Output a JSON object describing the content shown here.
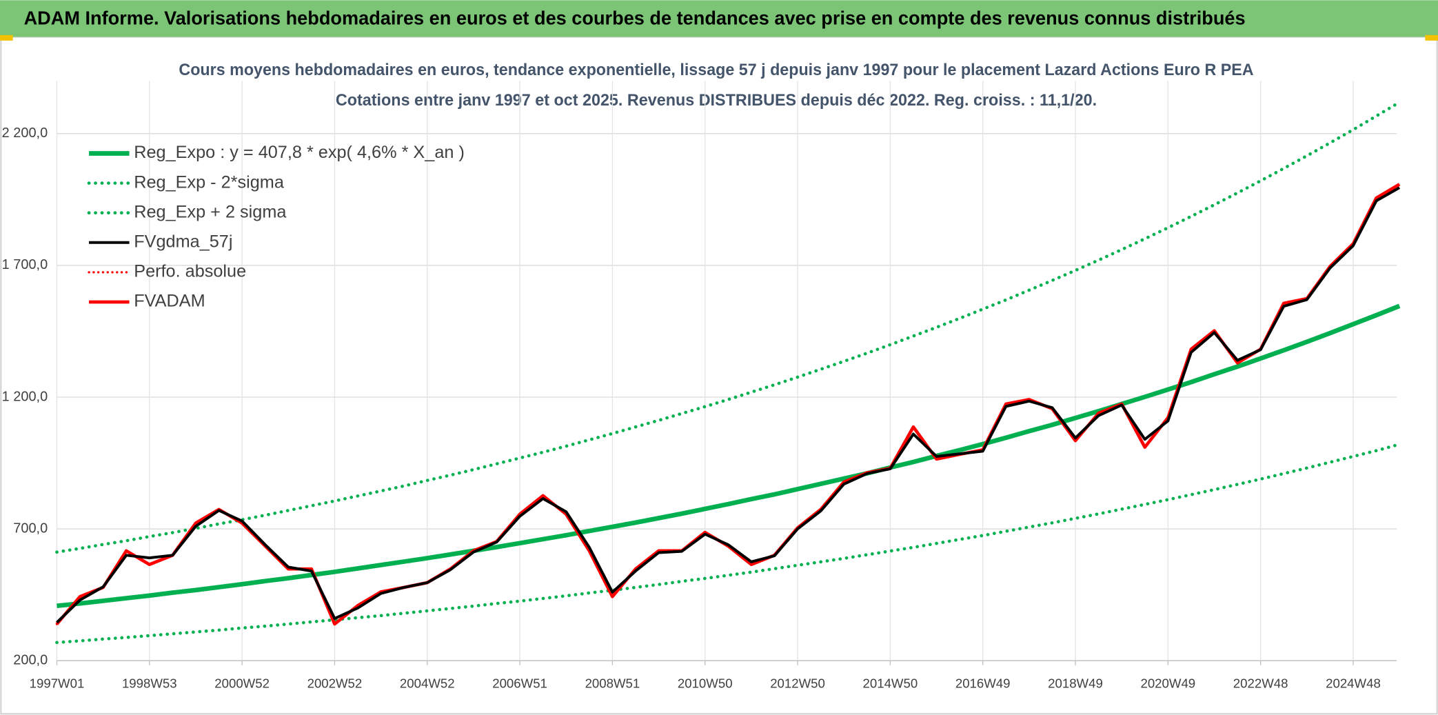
{
  "header": {
    "title": "ADAM Informe. Valorisations hebdomadaires en euros et des courbes de tendances avec prise en compte des revenus connus distribués"
  },
  "chart_data": {
    "type": "line",
    "title": "Cours moyens hebdomadaires en euros, tendance exponentielle, lissage 57 j depuis janv 1997 pour le placement Lazard Actions Euro R PEA",
    "subtitle": "Cotations entre janv 1997 et oct 2025. Revenus DISTRIBUES depuis déc 2022. Reg. croiss. : 11,1/20.",
    "categories": [
      "1997W01",
      null,
      null,
      null,
      "1998W53",
      null,
      null,
      null,
      "2000W52",
      null,
      null,
      null,
      "2002W52",
      null,
      null,
      null,
      "2004W52",
      null,
      null,
      null,
      "2006W51",
      null,
      null,
      null,
      "2008W51",
      null,
      null,
      null,
      "2010W50",
      null,
      null,
      null,
      "2012W50",
      null,
      null,
      null,
      "2014W50",
      null,
      null,
      null,
      "2016W49",
      null,
      null,
      null,
      "2018W49",
      null,
      null,
      null,
      "2020W49",
      null,
      null,
      null,
      "2022W48",
      null,
      null,
      null,
      "2024W48",
      null,
      null
    ],
    "ylim": [
      200,
      2400
    ],
    "yticks": [
      {
        "value": 200,
        "label": "200,0"
      },
      {
        "value": 700,
        "label": "700,0"
      },
      {
        "value": 1200,
        "label": "1 200,0"
      },
      {
        "value": 1700,
        "label": "1 700,0"
      },
      {
        "value": 2200,
        "label": "2 200,0"
      }
    ],
    "grid": true,
    "legend": "top-left",
    "series": [
      {
        "name": "Reg_Expo : y = 407,8 * exp( 4,6% *  X_an )",
        "color": "#00b050",
        "style": "solid",
        "values": [
          408,
          417,
          427,
          437,
          447,
          458,
          468,
          479,
          490,
          502,
          513,
          525,
          537,
          550,
          563,
          576,
          589,
          603,
          617,
          631,
          646,
          661,
          676,
          692,
          708,
          724,
          741,
          758,
          776,
          794,
          813,
          831,
          851,
          871,
          891,
          911,
          933,
          954,
          977,
          999,
          1022,
          1046,
          1071,
          1095,
          1121,
          1147,
          1174,
          1201,
          1229,
          1257,
          1287,
          1316,
          1347,
          1378,
          1410,
          1443,
          1477,
          1511,
          1546
        ]
      },
      {
        "name": "Reg_Exp - 2*sigma",
        "color": "#00b050",
        "style": "dotted",
        "values": [
          269,
          275,
          282,
          288,
          295,
          302,
          309,
          316,
          324,
          331,
          339,
          347,
          355,
          363,
          371,
          380,
          389,
          398,
          407,
          417,
          426,
          436,
          446,
          457,
          467,
          478,
          489,
          501,
          512,
          524,
          536,
          549,
          562,
          575,
          588,
          602,
          616,
          630,
          645,
          660,
          675,
          691,
          707,
          723,
          740,
          757,
          775,
          793,
          811,
          830,
          849,
          869,
          889,
          910,
          931,
          953,
          975,
          997,
          1021
        ]
      },
      {
        "name": "Reg_Exp + 2 sigma",
        "color": "#00b050",
        "style": "dotted",
        "values": [
          612,
          626,
          641,
          655,
          671,
          686,
          702,
          719,
          735,
          752,
          770,
          788,
          806,
          825,
          844,
          863,
          884,
          904,
          925,
          947,
          969,
          991,
          1014,
          1038,
          1062,
          1087,
          1112,
          1138,
          1164,
          1191,
          1219,
          1247,
          1276,
          1306,
          1336,
          1367,
          1399,
          1432,
          1465,
          1499,
          1534,
          1569,
          1606,
          1643,
          1681,
          1720,
          1760,
          1801,
          1843,
          1886,
          1930,
          1975,
          2021,
          2068,
          2116,
          2165,
          2215,
          2267,
          2319
        ]
      },
      {
        "name": "FVgdma_57j",
        "color": "#000000",
        "style": "solid",
        "values": [
          345,
          430,
          480,
          600,
          590,
          600,
          710,
          770,
          730,
          640,
          555,
          540,
          360,
          400,
          455,
          478,
          496,
          545,
          612,
          650,
          748,
          815,
          765,
          630,
          460,
          540,
          610,
          615,
          680,
          640,
          575,
          598,
          700,
          768,
          870,
          910,
          928,
          1060,
          975,
          985,
          995,
          1165,
          1185,
          1160,
          1045,
          1130,
          1170,
          1040,
          1110,
          1370,
          1445,
          1340,
          1380,
          1545,
          1570,
          1690,
          1775,
          1945,
          1995
        ]
      },
      {
        "name": "Perfo. absolue",
        "color": "#ff0000",
        "style": "dotted",
        "values": [
          339,
          443,
          478,
          617,
          565,
          600,
          722,
          774,
          722,
          635,
          548,
          548,
          339,
          409,
          461,
          478,
          496,
          548,
          617,
          652,
          756,
          826,
          756,
          617,
          443,
          548,
          617,
          617,
          687,
          635,
          565,
          600,
          704,
          774,
          878,
          913,
          930,
          1087,
          965,
          983,
          1000,
          1174,
          1191,
          1156,
          1035,
          1139,
          1174,
          1010,
          1122,
          1382,
          1452,
          1330,
          1382,
          1556,
          1574,
          1696,
          1782,
          1956,
          2008
        ]
      },
      {
        "name": "FVADAM",
        "color": "#ff0000",
        "style": "solid",
        "values": [
          339,
          443,
          478,
          617,
          565,
          600,
          722,
          774,
          722,
          635,
          548,
          548,
          339,
          409,
          461,
          478,
          496,
          548,
          617,
          652,
          756,
          826,
          756,
          617,
          443,
          548,
          617,
          617,
          687,
          635,
          565,
          600,
          704,
          774,
          878,
          913,
          930,
          1087,
          965,
          983,
          1000,
          1174,
          1191,
          1156,
          1035,
          1139,
          1174,
          1010,
          1122,
          1382,
          1452,
          1330,
          1382,
          1556,
          1574,
          1696,
          1782,
          1956,
          2008
        ]
      }
    ]
  }
}
